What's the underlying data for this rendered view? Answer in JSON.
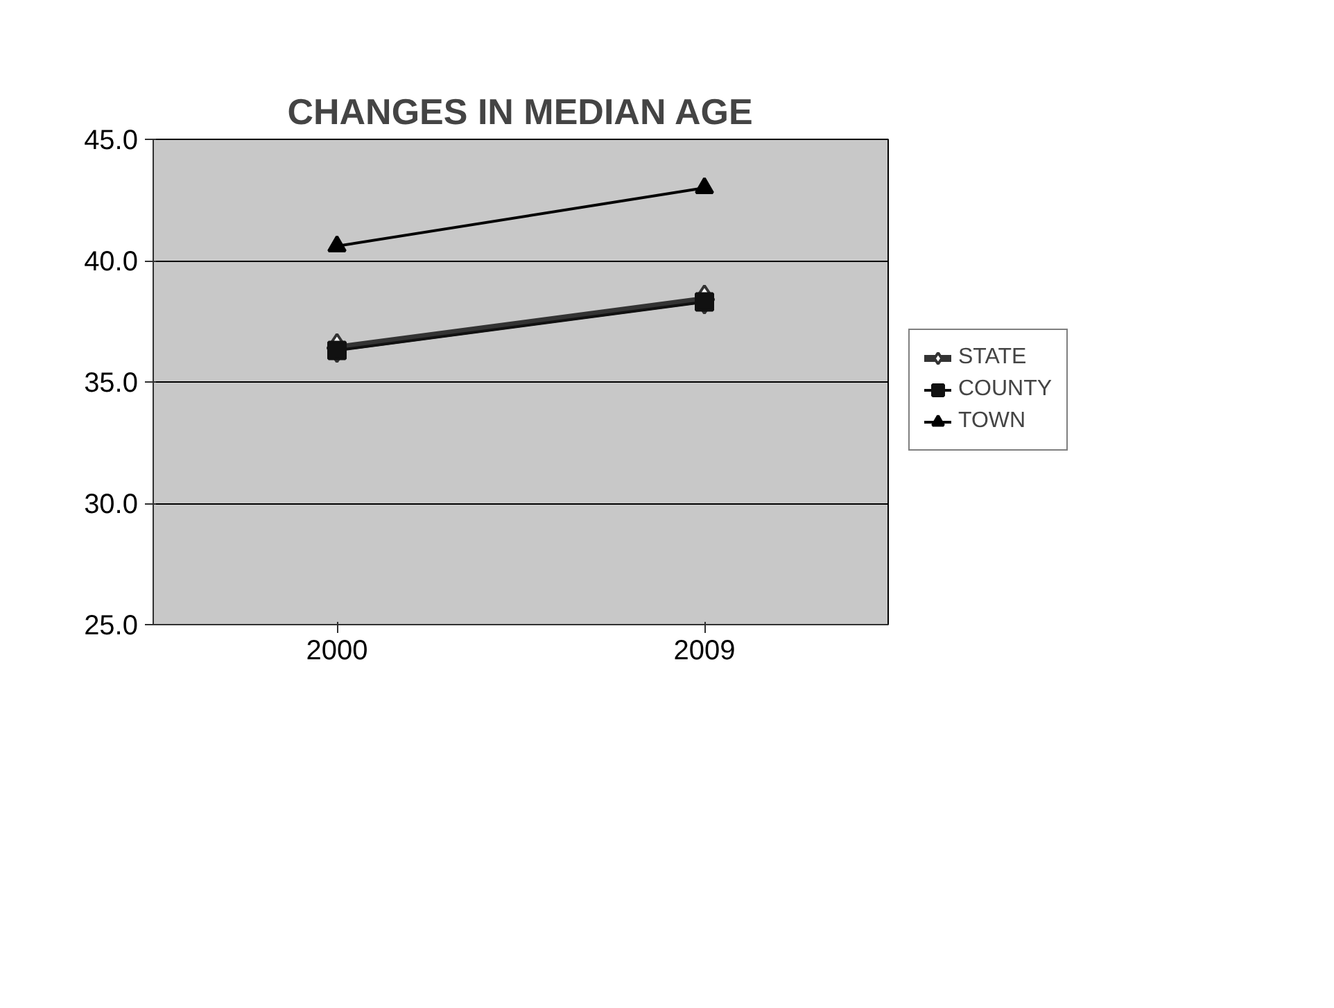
{
  "chart_data": {
    "type": "line",
    "title": "CHANGES IN MEDIAN AGE",
    "categories": [
      "2000",
      "2009"
    ],
    "series": [
      {
        "name": "STATE",
        "color": "#333333",
        "values": [
          36.4,
          38.4
        ],
        "marker": "diamond"
      },
      {
        "name": "COUNTY",
        "color": "#111111",
        "values": [
          36.3,
          38.3
        ],
        "marker": "square"
      },
      {
        "name": "TOWN",
        "color": "#000000",
        "values": [
          40.6,
          43.0
        ],
        "marker": "triangle"
      }
    ],
    "ylim": [
      25,
      45
    ],
    "yticks": [
      {
        "value": 25,
        "label": "25.0"
      },
      {
        "value": 30,
        "label": "30.0"
      },
      {
        "value": 35,
        "label": "35.0"
      },
      {
        "value": 40,
        "label": "40.0"
      },
      {
        "value": 45,
        "label": "45.0"
      }
    ],
    "grid": "y",
    "legend": "right"
  }
}
